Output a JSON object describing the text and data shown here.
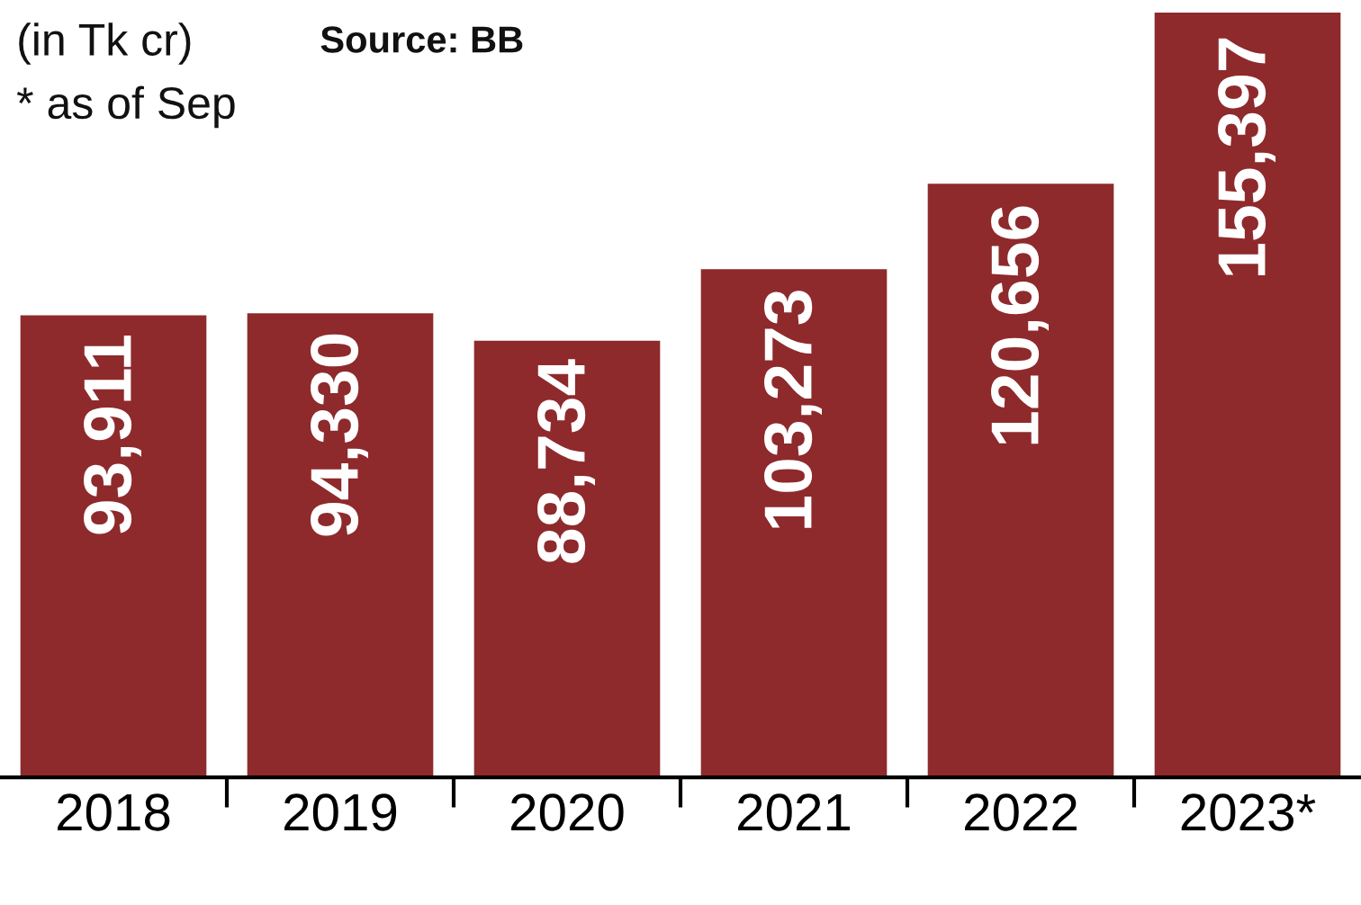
{
  "chart_data": {
    "type": "bar",
    "categories": [
      "2018",
      "2019",
      "2020",
      "2021",
      "2022",
      "2023*"
    ],
    "values": [
      93911,
      94330,
      88734,
      103273,
      120656,
      155397
    ],
    "color": "#8e2a2c",
    "value_labels": [
      "93,911",
      "94,330",
      "88,734",
      "103,273",
      "120,656",
      "155,397"
    ],
    "annotations": [
      "(in Tk cr)",
      "Source: BB",
      "* as of Sep"
    ]
  }
}
